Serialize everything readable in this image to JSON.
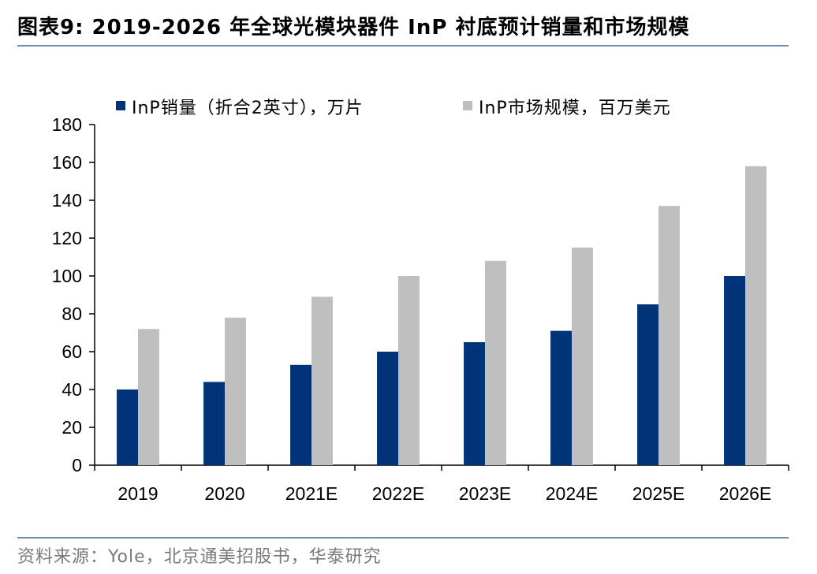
{
  "header": {
    "title": "图表9:  2019-2026 年全球光模块器件 InP 衬底预计销量和市场规模"
  },
  "footer": {
    "source": "资料来源：Yole，北京通美招股书，华泰研究"
  },
  "colors": {
    "rule": "#6f8eb6",
    "series_volume": "#003378",
    "series_market": "#bfbfbf"
  },
  "chart_data": {
    "type": "bar",
    "title": "",
    "xlabel": "",
    "ylabel": "",
    "ylim": [
      0,
      180
    ],
    "yticks": [
      0,
      20,
      40,
      60,
      80,
      100,
      120,
      140,
      160,
      180
    ],
    "grid": false,
    "legend_position": "top",
    "categories": [
      "2019",
      "2020",
      "2021E",
      "2022E",
      "2023E",
      "2024E",
      "2025E",
      "2026E"
    ],
    "series": [
      {
        "name": "InP销量（折合2英寸），万片",
        "color": "#003378",
        "values": [
          40,
          44,
          53,
          60,
          65,
          71,
          85,
          100
        ]
      },
      {
        "name": "InP市场规模，百万美元",
        "color": "#bfbfbf",
        "values": [
          72,
          78,
          89,
          100,
          108,
          115,
          137,
          158
        ]
      }
    ]
  }
}
